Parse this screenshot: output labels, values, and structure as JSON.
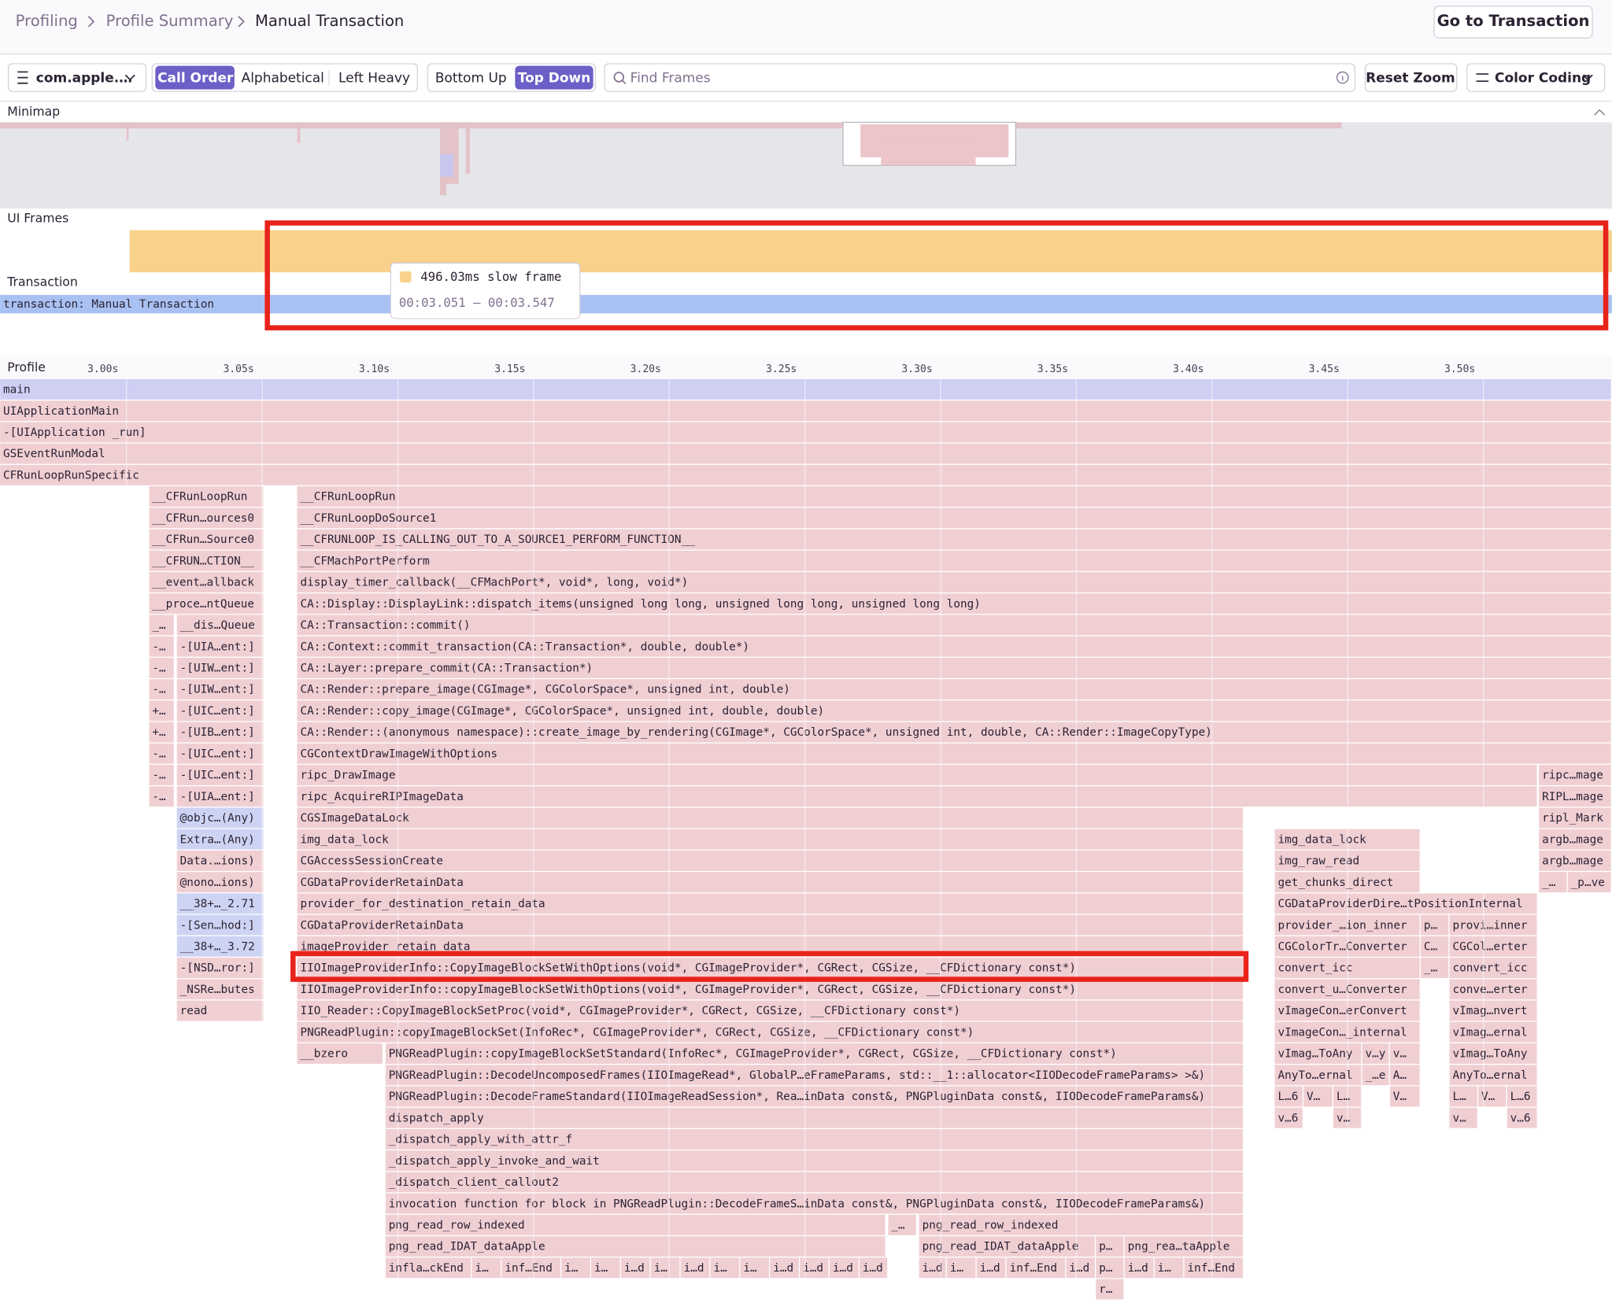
{
  "breadcrumbs": [
    "Profiling",
    "Profile Summary",
    "Manual Transaction"
  ],
  "header_button": "Go to Transaction",
  "toolbar": {
    "thread": "com.apple.…",
    "sort_options": [
      "Call Order",
      "Alphabetical",
      "Left Heavy"
    ],
    "view_options": [
      "Bottom Up",
      "Top Down"
    ],
    "search_placeholder": "Find Frames",
    "reset_zoom": "Reset Zoom",
    "color_coding": "Color Coding"
  },
  "minimap": {
    "label": "Minimap"
  },
  "ui_frames": {
    "label": "UI Frames",
    "tooltip": {
      "title": "496.03ms slow frame",
      "range": "00:03.051 — 00:03.547"
    }
  },
  "transaction": {
    "label": "Transaction",
    "bar": "transaction: Manual Transaction"
  },
  "profile": {
    "label": "Profile",
    "time_ticks": [
      "3.00s",
      "3.05s",
      "3.10s",
      "3.15s",
      "3.20s",
      "3.25s",
      "3.30s",
      "3.35s",
      "3.40s",
      "3.45s",
      "3.50s"
    ]
  },
  "flamegraph": {
    "rows": [
      [
        "main"
      ],
      [
        "UIApplicationMain"
      ],
      [
        "-[UIApplication _run]"
      ],
      [
        "GSEventRunModal"
      ],
      [
        "CFRunLoopRunSpecific"
      ],
      [
        "__CFRunLoopRun",
        "__CFRunLoopRun"
      ],
      [
        "__CFRun…ources0",
        "__CFRunLoopDoSource1"
      ],
      [
        "__CFRun…Source0",
        "__CFRUNLOOP_IS_CALLING_OUT_TO_A_SOURCE1_PERFORM_FUNCTION__"
      ],
      [
        "__CFRUN…CTION__",
        "__CFMachPortPerform"
      ],
      [
        "__event…allback",
        "display_timer_callback(__CFMachPort*, void*, long, void*)"
      ],
      [
        "__proce…ntQueue",
        "CA::Display::DisplayLink::dispatch_items(unsigned long long, unsigned long long, unsigned long long)"
      ],
      [
        "_…",
        "__dis…Queue",
        "CA::Transaction::commit()"
      ],
      [
        "-…",
        "-[UIA…ent:]",
        "CA::Context::commit_transaction(CA::Transaction*, double, double*)"
      ],
      [
        "-…",
        "-[UIW…ent:]",
        "CA::Layer::prepare_commit(CA::Transaction*)"
      ],
      [
        "-…",
        "-[UIW…ent:]",
        "CA::Render::prepare_image(CGImage*, CGColorSpace*, unsigned int, double)"
      ],
      [
        "+…",
        "-[UIC…ent:]",
        "CA::Render::copy_image(CGImage*, CGColorSpace*, unsigned int, double, double)"
      ],
      [
        "+…",
        "-[UIB…ent:]",
        "CA::Render::(anonymous namespace)::create_image_by_rendering(CGImage*, CGColorSpace*, unsigned int, double, CA::Render::ImageCopyType)"
      ],
      [
        "-…",
        "-[UIC…ent:]",
        "CGContextDrawImageWithOptions"
      ],
      [
        "-…",
        "-[UIC…ent:]",
        "ripc_DrawImage",
        "ripc…mage"
      ],
      [
        "-…",
        "-[UIA…ent:]",
        "ripc_AcquireRIPImageData",
        "RIPL…mage"
      ],
      [
        "@objc…(Any)",
        "CGSImageDataLock",
        "ripl_Mark"
      ],
      [
        "Extra…(Any)",
        "img_data_lock",
        "img_data_lock",
        "argb…mage"
      ],
      [
        "Data.…ions)",
        "CGAccessSessionCreate",
        "img_raw_read",
        "argb…mage"
      ],
      [
        "@nono…ions)",
        "CGDataProviderRetainData",
        "get_chunks_direct",
        "_…",
        "_p…ve"
      ],
      [
        "__38+…_2.71",
        "provider_for_destination_retain_data",
        "CGDataProviderDire…tPositionInternal"
      ],
      [
        "-[Sen…hod:]",
        "CGDataProviderRetainData",
        "provider_…ion_inner",
        "p…",
        "provi…inner"
      ],
      [
        "__38+…_3.72",
        "imageProvider_retain_data",
        "CGColorTr…Converter",
        "C…",
        "CGCol…erter"
      ],
      [
        "-[NSD…ror:]",
        "IIOImageProviderInfo::CopyImageBlockSetWithOptions(void*, CGImageProvider*, CGRect, CGSize, __CFDictionary const*)",
        "convert_icc",
        "_…",
        "convert_icc"
      ],
      [
        "_NSRe…butes",
        "IIOImageProviderInfo::copyImageBlockSetWithOptions(void*, CGImageProvider*, CGRect, CGSize, __CFDictionary const*)",
        "convert_u…Converter",
        "conve…erter"
      ],
      [
        "read",
        "IIO_Reader::CopyImageBlockSetProc(void*, CGImageProvider*, CGRect, CGSize, __CFDictionary const*)",
        "vImageCon…erConvert",
        "vImag…nvert"
      ],
      [
        "PNGReadPlugin::copyImageBlockSet(InfoRec*, CGImageProvider*, CGRect, CGSize, __CFDictionary const*)",
        "vImageCon…_internal",
        "vImag…ernal"
      ],
      [
        "__bzero",
        "PNGReadPlugin::copyImageBlockSetStandard(InfoRec*, CGImageProvider*, CGRect, CGSize, __CFDictionary const*)",
        "vImag…ToAny",
        "v…y",
        "v…",
        "vImag…ToAny"
      ],
      [
        "PNGReadPlugin::DecodeUncomposedFrames(IIOImageRead*, GlobalP…eFrameParams, std::__1::allocator<IIODecodeFrameParams> >&)",
        "AnyTo…ernal",
        "_…e",
        "A…",
        "AnyTo…ernal"
      ],
      [
        "PNGReadPlugin::DecodeFrameStandard(IIOImageReadSession*, Rea…inData const&, PNGPluginData const&, IIODecodeFrameParams&)",
        "L…6",
        "V…",
        "L…",
        "V…",
        "L…",
        "V…",
        "L…6"
      ],
      [
        "dispatch_apply",
        "v…6",
        "v…",
        "v…",
        "v…6"
      ],
      [
        "_dispatch_apply_with_attr_f"
      ],
      [
        "_dispatch_apply_invoke_and_wait"
      ],
      [
        "_dispatch_client_callout2"
      ],
      [
        "invocation function for block in PNGReadPlugin::DecodeFrameS…inData const&, PNGPluginData const&, IIODecodeFrameParams&)"
      ],
      [
        "png_read_row_indexed",
        "_…",
        "png_read_row_indexed"
      ],
      [
        "png_read_IDAT_dataApple",
        "png_read_IDAT_dataApple",
        "p…",
        "png_rea…taApple"
      ],
      [
        "infla…ckEnd",
        "i…",
        "inf…End",
        "i…",
        "i…",
        "i…d",
        "i…",
        "i…d",
        "i…",
        "i…",
        "i…d",
        "i…d",
        "i…d",
        "i…d",
        "i…d",
        "i…",
        "i…d",
        "inf…End",
        "i…d",
        "p…",
        "i…d",
        "i…",
        "inf…End"
      ],
      [
        "r…"
      ]
    ]
  }
}
